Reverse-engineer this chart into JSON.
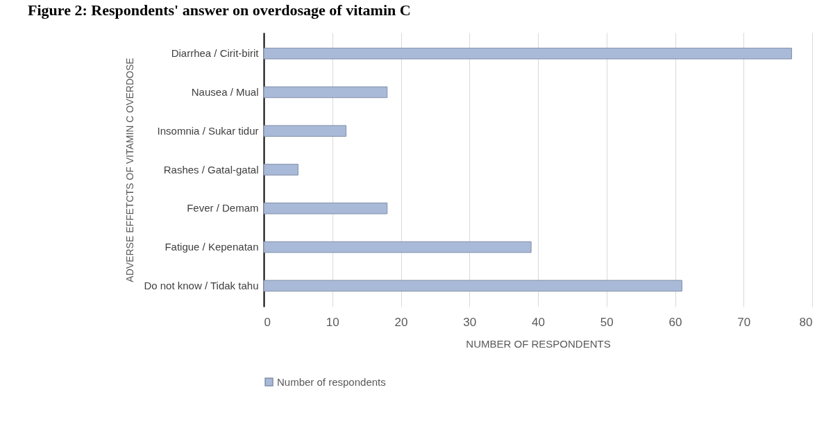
{
  "chart_data": {
    "type": "bar",
    "orientation": "horizontal",
    "title": "Figure 2: Respondents' answer on overdosage of vitamin C",
    "xlabel": "NUMBER OF RESPONDENTS",
    "ylabel": "ADVERSE EFFETCTS OF VITAMIN C OVERDOSE",
    "categories": [
      "Diarrhea / Cirit-birit",
      "Nausea / Mual",
      "Insomnia / Sukar tidur",
      "Rashes / Gatal-gatal",
      "Fever / Demam",
      "Fatigue / Kepenatan",
      "Do not know / Tidak tahu"
    ],
    "series": [
      {
        "name": "Number of respondents",
        "color": "#a9b9d8",
        "values": [
          77,
          18,
          12,
          5,
          18,
          39,
          61
        ]
      }
    ],
    "xlim": [
      0,
      80
    ],
    "xticks": [
      0,
      10,
      20,
      30,
      40,
      50,
      60,
      70,
      80
    ],
    "grid": "x",
    "legend": "bottom"
  }
}
